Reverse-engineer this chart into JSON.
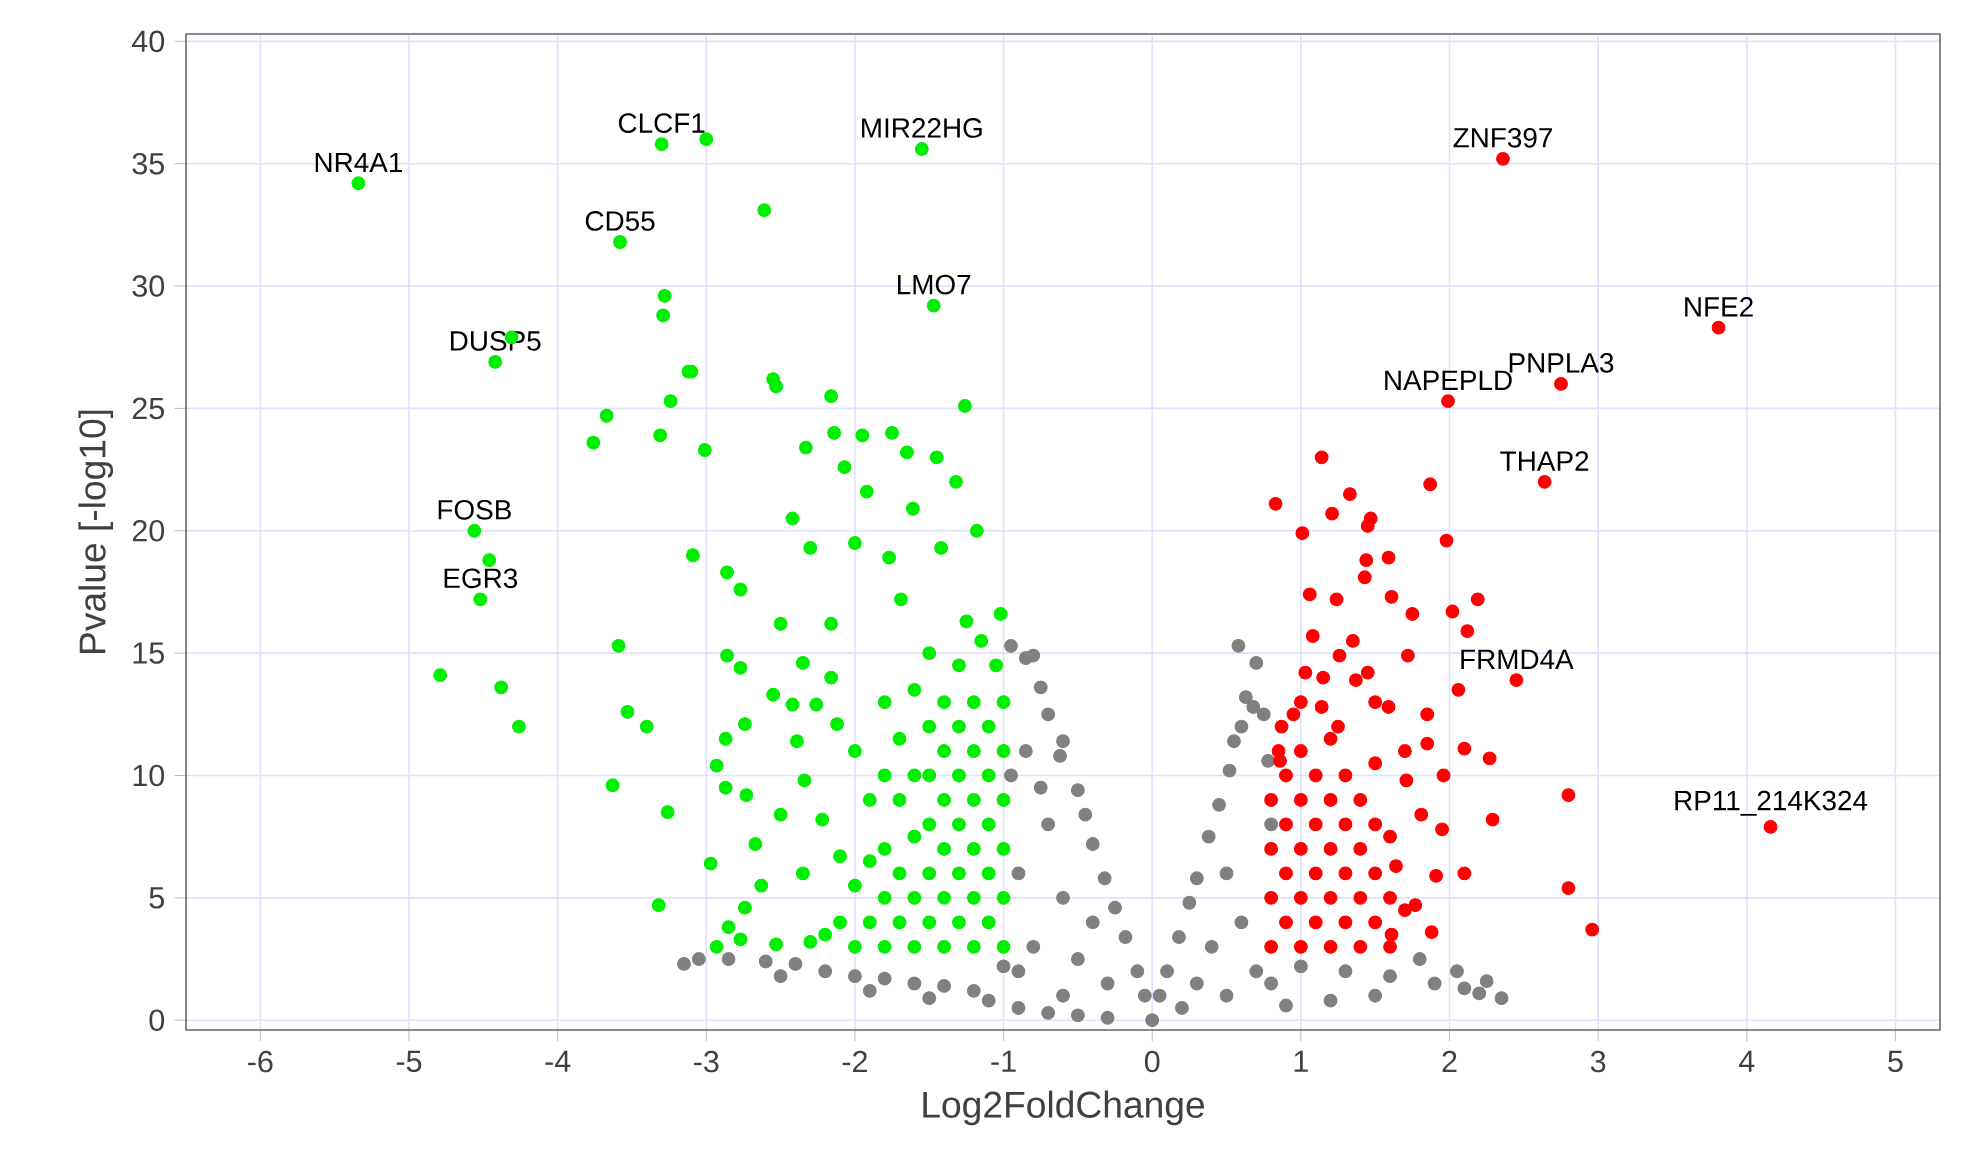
{
  "chart_data": {
    "type": "scatter",
    "xlabel": "Log2FoldChange",
    "ylabel": "Pvalue [-log10]",
    "xlim": [
      -6.5,
      5.3
    ],
    "ylim": [
      -0.4,
      40.3
    ],
    "xticks": [
      -6,
      -5,
      -4,
      -3,
      -2,
      -1,
      0,
      1,
      2,
      3,
      4,
      5
    ],
    "yticks": [
      0,
      5,
      10,
      15,
      20,
      25,
      30,
      35,
      40
    ],
    "grid": true,
    "marker": "circle",
    "series": [
      {
        "color": "#808080",
        "x": [
          -3.15,
          -3.05,
          -2.85,
          -2.6,
          -2.4,
          -2.2,
          -2.0,
          -1.8,
          -1.6,
          -1.4,
          -1.2,
          -2.5,
          -1.9,
          -1.5,
          -1.1,
          -0.9,
          -0.7,
          -0.5,
          -0.3,
          0,
          -0.95,
          -0.85,
          -0.75,
          -0.8,
          -0.7,
          -0.6,
          -0.62,
          -0.5,
          -0.45,
          -0.4,
          -0.32,
          -0.25,
          -0.18,
          -0.1,
          -0.05,
          -0.95,
          -0.9,
          -0.8,
          -0.7,
          -0.6,
          -0.5,
          -0.4,
          -0.3,
          -0.85,
          -0.75,
          -0.9,
          -1.0,
          -0.6,
          0.05,
          0.1,
          0.18,
          0.25,
          0.3,
          0.38,
          0.45,
          0.52,
          0.55,
          0.6,
          0.58,
          0.7,
          0.63,
          0.68,
          0.75,
          0.78,
          0.8,
          0.5,
          0.4,
          0.6,
          0.7,
          0.3,
          0.2,
          0.5,
          0.8,
          1.0,
          1.3,
          1.6,
          1.9,
          2.1,
          2.2,
          2.25,
          2.05,
          1.8,
          1.5,
          1.2,
          0.9,
          2.35
        ],
        "values": [
          2.3,
          2.5,
          2.5,
          2.4,
          2.3,
          2.0,
          1.8,
          1.7,
          1.5,
          1.4,
          1.2,
          1.8,
          1.2,
          0.9,
          0.8,
          0.5,
          0.3,
          0.2,
          0.1,
          0,
          15.3,
          14.8,
          13.6,
          14.9,
          12.5,
          11.4,
          10.8,
          9.4,
          8.4,
          7.2,
          5.8,
          4.6,
          3.4,
          2.0,
          1.0,
          10,
          6,
          3,
          8,
          5,
          2.5,
          4,
          1.5,
          11,
          9.5,
          2,
          2.2,
          1,
          1.0,
          2.0,
          3.4,
          4.8,
          5.8,
          7.5,
          8.8,
          10.2,
          11.4,
          12.0,
          15.3,
          14.6,
          13.2,
          12.8,
          12.5,
          10.6,
          8,
          6,
          3,
          4,
          2,
          1.5,
          0.5,
          1,
          1.5,
          2.2,
          2.0,
          1.8,
          1.5,
          1.3,
          1.1,
          1.6,
          2.0,
          2.5,
          1.0,
          0.8,
          0.6,
          0.9
        ]
      },
      {
        "color": "#00ee00",
        "x": [
          -5.34,
          -3.3,
          -1.55,
          -3.58,
          -1.47,
          -4.42,
          -4.56,
          -4.52,
          -4.31,
          -3.28,
          -3.29,
          -3.1,
          -3.24,
          -3.67,
          -3.76,
          -3.31,
          -4.46,
          -3.09,
          -3.59,
          -4.79,
          -4.38,
          -4.26,
          -3.53,
          -3.4,
          -3.63,
          -3.26,
          -3.32,
          -3.0,
          -2.61,
          -3.12,
          -2.55,
          -2.53,
          -2.16,
          -1.26,
          -2.33,
          -3.01,
          -2.14,
          -1.95,
          -1.75,
          -1.65,
          -1.45,
          -1.32,
          -2.07,
          -1.92,
          -2.42,
          -1.61,
          -1.18,
          -2.86,
          -2.77,
          -2.3,
          -2.0,
          -1.77,
          -1.42,
          -2.5,
          -2.16,
          -1.69,
          -1.02,
          -2.86,
          -2.77,
          -2.35,
          -2.16,
          -2.55,
          -2.42,
          -2.26,
          -2.74,
          -2.87,
          -2.39,
          -2.12,
          -2.93,
          -2.87,
          -2.73,
          -2.5,
          -2.34,
          -2.22,
          -2.67,
          -2.97,
          -2.63,
          -2.74,
          -2.85,
          -2.93,
          -2.77,
          -2.53,
          -2.35,
          -2.1,
          -1.0,
          -1.0,
          -1.0,
          -1.0,
          -1.0,
          -1.0,
          -1.05,
          -1.1,
          -1.1,
          -1.1,
          -1.1,
          -1.1,
          -1.15,
          -1.2,
          -1.2,
          -1.2,
          -1.2,
          -1.2,
          -1.2,
          -1.25,
          -1.3,
          -1.3,
          -1.3,
          -1.3,
          -1.3,
          -1.3,
          -1.4,
          -1.4,
          -1.4,
          -1.4,
          -1.4,
          -1.4,
          -1.5,
          -1.5,
          -1.5,
          -1.5,
          -1.5,
          -1.5,
          -1.6,
          -1.6,
          -1.6,
          -1.6,
          -1.6,
          -1.7,
          -1.7,
          -1.7,
          -1.7,
          -1.8,
          -1.8,
          -1.8,
          -1.8,
          -1.8,
          -1.9,
          -1.9,
          -1.9,
          -2.0,
          -2.0,
          -2.0,
          -2.1,
          -2.2,
          -2.3
        ],
        "values": [
          34.2,
          35.8,
          35.6,
          31.8,
          29.2,
          26.9,
          20.0,
          17.2,
          27.9,
          29.6,
          28.8,
          26.5,
          25.3,
          24.7,
          23.6,
          23.9,
          18.8,
          19.0,
          15.3,
          14.1,
          13.6,
          12.0,
          12.6,
          12.0,
          9.6,
          8.5,
          4.7,
          36.0,
          33.1,
          26.5,
          26.2,
          25.9,
          25.5,
          25.1,
          23.4,
          23.3,
          24.0,
          23.9,
          24.0,
          23.2,
          23.0,
          22.0,
          22.6,
          21.6,
          20.5,
          20.9,
          20.0,
          18.3,
          17.6,
          19.3,
          19.5,
          18.9,
          19.3,
          16.2,
          16.2,
          17.2,
          16.6,
          14.9,
          14.4,
          14.6,
          14.0,
          13.3,
          12.9,
          12.9,
          12.1,
          11.5,
          11.4,
          12.1,
          10.4,
          9.5,
          9.2,
          8.4,
          9.8,
          8.2,
          7.2,
          6.4,
          5.5,
          4.6,
          3.8,
          3.0,
          3.3,
          3.1,
          6.0,
          6.7,
          3,
          5,
          7,
          9,
          11,
          13,
          14.5,
          4,
          6,
          8,
          10,
          12,
          15.5,
          3,
          5,
          7,
          9,
          11,
          13,
          16.3,
          4,
          6,
          8,
          10,
          12,
          14.5,
          3,
          5,
          7,
          9,
          11,
          13,
          4,
          6,
          8,
          10,
          12,
          15,
          3,
          5,
          7.5,
          10,
          13.5,
          4,
          6,
          9,
          11.5,
          3,
          5,
          7,
          10,
          13,
          4,
          6.5,
          9,
          3,
          5.5,
          11,
          4,
          3.5,
          3.2
        ]
      },
      {
        "color": "#ff0000",
        "x": [
          2.36,
          3.81,
          2.75,
          1.99,
          2.64,
          2.45,
          4.16,
          1.14,
          0.83,
          1.33,
          1.21,
          1.47,
          1.45,
          1.01,
          1.87,
          1.98,
          1.44,
          1.59,
          1.43,
          1.06,
          1.24,
          1.61,
          1.75,
          2.19,
          2.02,
          2.12,
          1.08,
          1.26,
          1.72,
          2.06,
          1.03,
          1.45,
          1.85,
          2.1,
          2.27,
          1.96,
          1.85,
          2.29,
          1.95,
          2.1,
          1.91,
          1.77,
          1.88,
          2.8,
          2.8,
          2.96,
          1.71,
          1.81,
          1.64,
          1.61,
          0.87,
          1.14,
          1.37,
          1.59,
          0.86,
          0.8,
          0.8,
          0.8,
          0.8,
          0.85,
          0.9,
          0.9,
          0.9,
          0.9,
          1.0,
          1.0,
          1.0,
          1.0,
          1.0,
          1.1,
          1.1,
          1.1,
          1.1,
          1.2,
          1.2,
          1.2,
          1.2,
          1.2,
          1.3,
          1.3,
          1.3,
          1.3,
          1.4,
          1.4,
          1.4,
          1.4,
          1.5,
          1.5,
          1.5,
          1.5,
          1.6,
          1.6,
          1.6,
          1.7,
          1.7,
          1.0,
          1.15,
          0.95,
          1.25,
          1.5,
          1.35
        ],
        "values": [
          35.2,
          28.3,
          26.0,
          25.3,
          22.0,
          13.9,
          7.9,
          23.0,
          21.1,
          21.5,
          20.7,
          20.5,
          20.2,
          19.9,
          21.9,
          19.6,
          18.8,
          18.9,
          18.1,
          17.4,
          17.2,
          17.3,
          16.6,
          17.2,
          16.7,
          15.9,
          15.7,
          14.9,
          14.9,
          13.5,
          14.2,
          14.2,
          12.5,
          11.1,
          10.7,
          10.0,
          11.3,
          8.2,
          7.8,
          6.0,
          5.9,
          4.7,
          3.6,
          9.2,
          5.4,
          3.7,
          9.8,
          8.4,
          6.3,
          3.5,
          12.0,
          12.8,
          13.9,
          12.8,
          10.6,
          3,
          5,
          7,
          9,
          11,
          4,
          6,
          8,
          10,
          3,
          5,
          7,
          9,
          11,
          4,
          6,
          8,
          10,
          3,
          5,
          7,
          9,
          11.5,
          4,
          6,
          8,
          10,
          3,
          5,
          7,
          9,
          4,
          6,
          8,
          10.5,
          3,
          5,
          7.5,
          4.5,
          11,
          13,
          14,
          12.5,
          12,
          13,
          15.5
        ]
      }
    ],
    "annotations": [
      {
        "text": "NR4A1",
        "x": -5.34,
        "y": 34.2
      },
      {
        "text": "CLCF1",
        "x": -3.3,
        "y": 35.8
      },
      {
        "text": "MIR22HG",
        "x": -1.55,
        "y": 35.6
      },
      {
        "text": "CD55",
        "x": -3.58,
        "y": 31.8
      },
      {
        "text": "LMO7",
        "x": -1.47,
        "y": 29.2
      },
      {
        "text": "DUSP5",
        "x": -4.42,
        "y": 26.9
      },
      {
        "text": "FOSB",
        "x": -4.56,
        "y": 20.0
      },
      {
        "text": "EGR3",
        "x": -4.52,
        "y": 17.2
      },
      {
        "text": "ZNF397",
        "x": 2.36,
        "y": 35.2
      },
      {
        "text": "NFE2",
        "x": 3.81,
        "y": 28.3
      },
      {
        "text": "PNPLA3",
        "x": 2.75,
        "y": 26.0
      },
      {
        "text": "NAPEPLD",
        "x": 1.99,
        "y": 25.3
      },
      {
        "text": "THAP2",
        "x": 2.64,
        "y": 22.0
      },
      {
        "text": "FRMD4A",
        "x": 2.45,
        "y": 13.9
      },
      {
        "text": "RP11_214K324",
        "x": 4.16,
        "y": 7.9
      }
    ]
  }
}
